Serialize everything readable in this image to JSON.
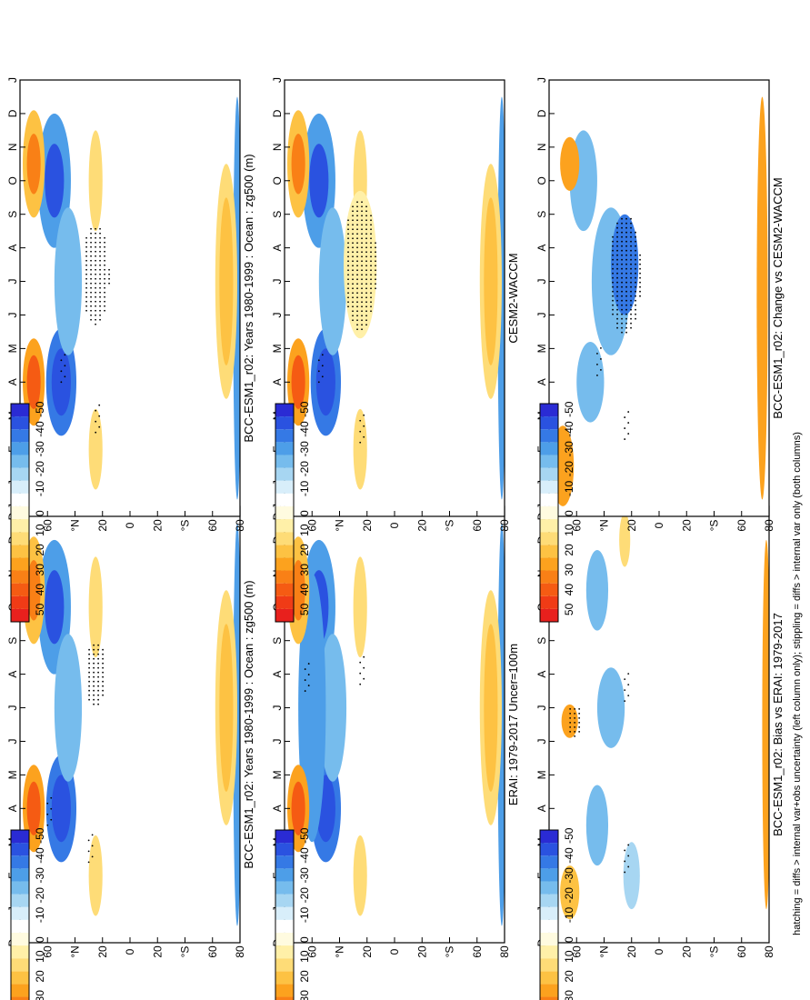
{
  "months": [
    "D",
    "J",
    "F",
    "M",
    "A",
    "M",
    "J",
    "J",
    "A",
    "S",
    "O",
    "N",
    "D",
    "J"
  ],
  "lat_labels": [
    "80",
    "60",
    "°N",
    "20",
    "0",
    "20",
    "°S",
    "60",
    "80"
  ],
  "palette": [
    "#e8201d",
    "#f03b16",
    "#f55b13",
    "#f98016",
    "#fca21e",
    "#fdc243",
    "#fedc77",
    "#fff0a8",
    "#fffbe0",
    "#ffffff",
    "#d8eefa",
    "#a7d6f2",
    "#76bced",
    "#4d9ee8",
    "#3579e5",
    "#2a52e0",
    "#2a2bd4"
  ],
  "colorbar_labels": [
    "50",
    "40",
    "30",
    "20",
    "10",
    "0",
    "-10",
    "-20",
    "-30",
    "-40",
    "-50"
  ],
  "footer": "hatching = diffs > internal var+obs uncertainty (left column only); stippling = diffs > internal var only (both columns)",
  "chart_data": [
    {
      "type": "heatmap",
      "title": "BCC-ESM1_r02: Years 1980-1999 : Ocean : zg500 (m)",
      "x": [
        "D",
        "J",
        "F",
        "M",
        "A",
        "M",
        "J",
        "J",
        "A",
        "S",
        "O",
        "N",
        "D",
        "J"
      ],
      "y": [
        "80°N",
        "60°N",
        "20°N",
        "0",
        "20°S",
        "60°S",
        "80°S"
      ],
      "colorbar": {
        "min": -50,
        "max": 50,
        "step": 10
      }
    },
    {
      "type": "heatmap",
      "title": "ERAI: 1979-2017 Uncer=100m",
      "x": [
        "D",
        "J",
        "F",
        "M",
        "A",
        "M",
        "J",
        "J",
        "A",
        "S",
        "O",
        "N",
        "D",
        "J"
      ],
      "colorbar": {
        "min": -50,
        "max": 50,
        "step": 10
      }
    },
    {
      "type": "heatmap",
      "title": "BCC-ESM1_r02: Bias vs ERAI: 1979-2017",
      "x": [
        "D",
        "J",
        "F",
        "M",
        "A",
        "M",
        "J",
        "J",
        "A",
        "S",
        "O",
        "N",
        "D",
        "J"
      ],
      "colorbar": {
        "min": -50,
        "max": 50,
        "step": 10
      }
    },
    {
      "type": "heatmap",
      "title": "BCC-ESM1_r02: Years 1980-1999 : Ocean : zg500 (m)",
      "x": [
        "D",
        "J",
        "F",
        "M",
        "A",
        "M",
        "J",
        "J",
        "A",
        "S",
        "O",
        "N",
        "D",
        "J"
      ],
      "colorbar": {
        "min": -50,
        "max": 50,
        "step": 10
      }
    },
    {
      "type": "heatmap",
      "title": "CESM2-WACCM",
      "x": [
        "D",
        "J",
        "F",
        "M",
        "A",
        "M",
        "J",
        "J",
        "A",
        "S",
        "O",
        "N",
        "D",
        "J"
      ],
      "colorbar": {
        "min": -50,
        "max": 50,
        "step": 10
      }
    },
    {
      "type": "heatmap",
      "title": "BCC-ESM1_r02: Change vs CESM2-WACCM",
      "x": [
        "D",
        "J",
        "F",
        "M",
        "A",
        "M",
        "J",
        "J",
        "A",
        "S",
        "O",
        "N",
        "D",
        "J"
      ],
      "colorbar": {
        "min": -50,
        "max": 50,
        "step": 10
      }
    }
  ]
}
